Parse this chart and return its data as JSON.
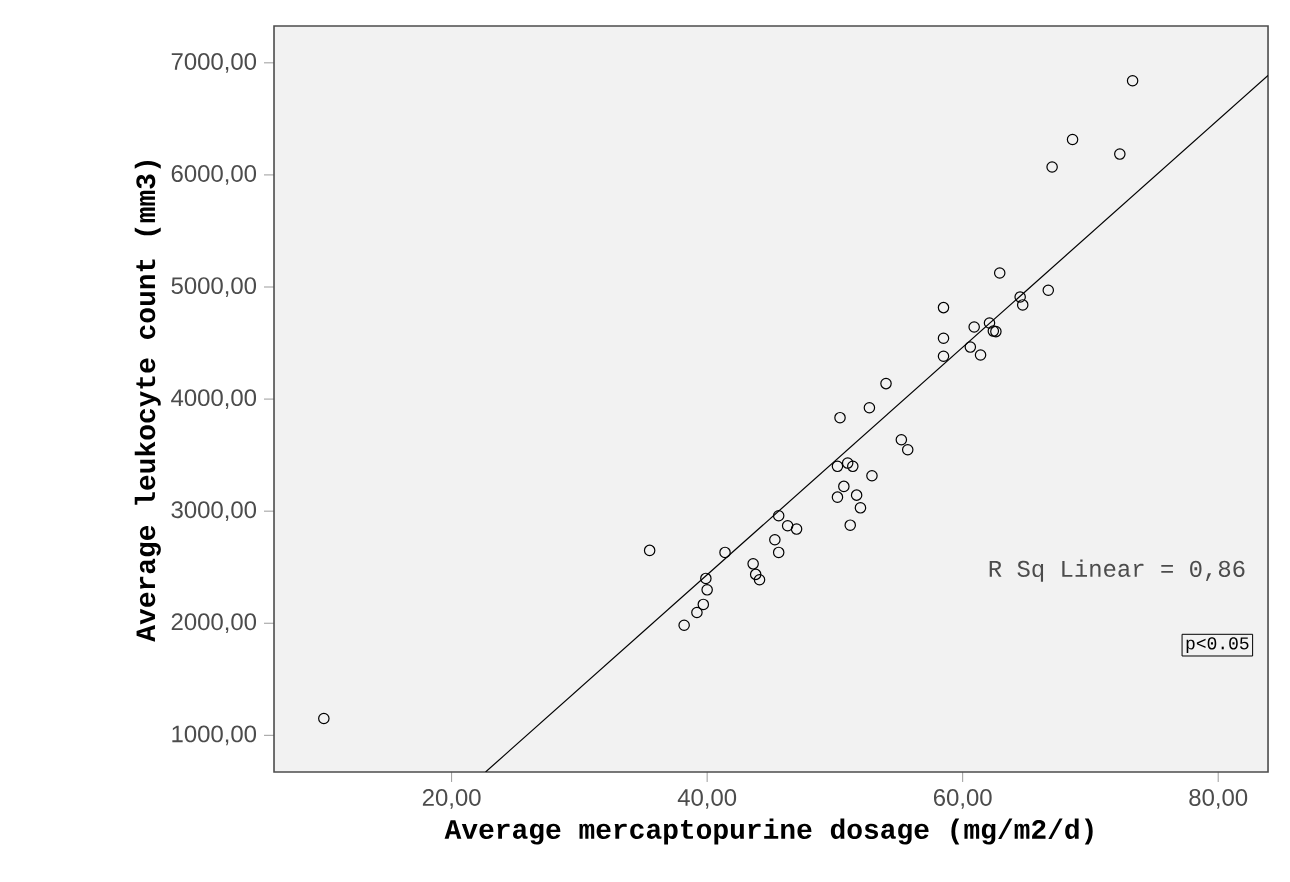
{
  "chart_data": {
    "type": "scatter",
    "xlabel": "Average mercaptopurine dosage (mg/m2/d)",
    "ylabel": "Average leukocyte count (mm3)",
    "xlim": [
      6.1,
      83.9
    ],
    "ylim": [
      673,
      7329
    ],
    "xticks": [
      {
        "value": 20,
        "label": "20,00"
      },
      {
        "value": 40,
        "label": "40,00"
      },
      {
        "value": 60,
        "label": "60,00"
      },
      {
        "value": 80,
        "label": "80,00"
      }
    ],
    "yticks": [
      {
        "value": 1000,
        "label": "1000,00"
      },
      {
        "value": 2000,
        "label": "2000,00"
      },
      {
        "value": 3000,
        "label": "3000,00"
      },
      {
        "value": 4000,
        "label": "4000,00"
      },
      {
        "value": 5000,
        "label": "5000,00"
      },
      {
        "value": 6000,
        "label": "6000,00"
      },
      {
        "value": 7000,
        "label": "7000,00"
      }
    ],
    "grid": false,
    "annotations": [
      "R Sq Linear = 0,86",
      "p<0.05"
    ],
    "series": [
      {
        "marker": "circle",
        "color": "#000000",
        "x": [
          10.0,
          35.5,
          41.4,
          39.9,
          40.0,
          39.7,
          39.2,
          38.2,
          43.6,
          43.8,
          44.1,
          45.6,
          46.3,
          47.0,
          45.3,
          45.6,
          50.4,
          52.7,
          55.2,
          55.7,
          50.2,
          51.0,
          51.4,
          52.9,
          50.7,
          50.2,
          51.7,
          52.0,
          51.2,
          73.3,
          68.6,
          72.3,
          67.0,
          62.9,
          66.7,
          64.5,
          64.7,
          58.5,
          60.9,
          62.1,
          62.4,
          62.6,
          58.5,
          60.6,
          61.4,
          58.5,
          54.0
        ],
        "values": [
          1150,
          2650,
          2632,
          2400,
          2298,
          2168,
          2096,
          1982,
          2530,
          2436,
          2388,
          2959,
          2870,
          2840,
          2745,
          2632,
          3834,
          3923,
          3637,
          3548,
          3400,
          3429,
          3400,
          3316,
          3221,
          3125,
          3143,
          3030,
          2875,
          6840,
          6316,
          6186,
          6071,
          5125,
          4971,
          4911,
          4840,
          4816,
          4643,
          4679,
          4607,
          4602,
          4543,
          4464,
          4393,
          4382,
          4138
        ]
      },
      {
        "type": "line",
        "marker": "none",
        "color": "#000000",
        "x": [
          22.66,
          83.9
        ],
        "values": [
          673,
          6887
        ]
      }
    ]
  }
}
